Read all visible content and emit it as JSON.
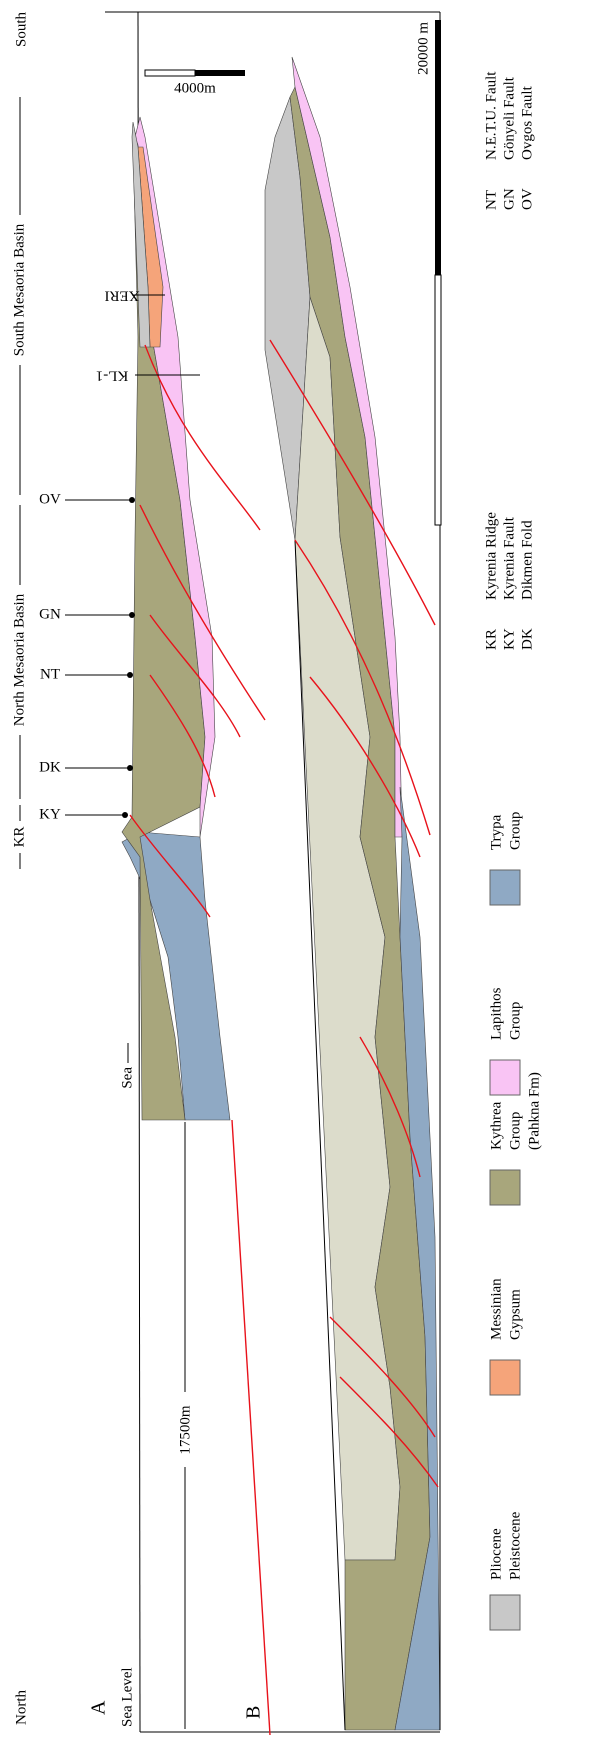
{
  "header": {
    "north": "North",
    "south": "South",
    "regions": [
      {
        "label": "KR"
      },
      {
        "label": "North Mesaoria Basin"
      },
      {
        "label": "South Mesaoria Basin"
      }
    ]
  },
  "section_a": {
    "label": "A",
    "sea_level": "Sea Level",
    "depth": "17500m",
    "sea": "Sea",
    "wells": [
      {
        "label": "KY"
      },
      {
        "label": "DK"
      },
      {
        "label": "NT"
      },
      {
        "label": "GN"
      },
      {
        "label": "OV"
      },
      {
        "label": "KL-1"
      },
      {
        "label": "XERI"
      }
    ]
  },
  "section_b": {
    "label": "B"
  },
  "scales": {
    "vertical": "4000m",
    "horizontal": "20000 m"
  },
  "legend": [
    {
      "lines": [
        "Pliocene",
        "Pleistocene"
      ]
    },
    {
      "lines": [
        "Messinian",
        "Gypsum"
      ]
    },
    {
      "lines": [
        "Kythrea",
        "Group",
        "(Pahkna Fm)"
      ]
    },
    {
      "lines": [
        "Lapithos",
        "Group"
      ]
    },
    {
      "lines": [
        "Trypa",
        "Group"
      ]
    }
  ],
  "abbreviations": [
    {
      "code": "KR",
      "name": "Kyrenia Ridge"
    },
    {
      "code": "KY",
      "name": "Kyrenia Fault"
    },
    {
      "code": "DK",
      "name": "Dikmen Fold"
    },
    {
      "code": "NT",
      "name": "N.E.T.U. Fault"
    },
    {
      "code": "GN",
      "name": "Gönyeli Fault"
    },
    {
      "code": "OV",
      "name": "Ovgos Fault"
    }
  ]
}
